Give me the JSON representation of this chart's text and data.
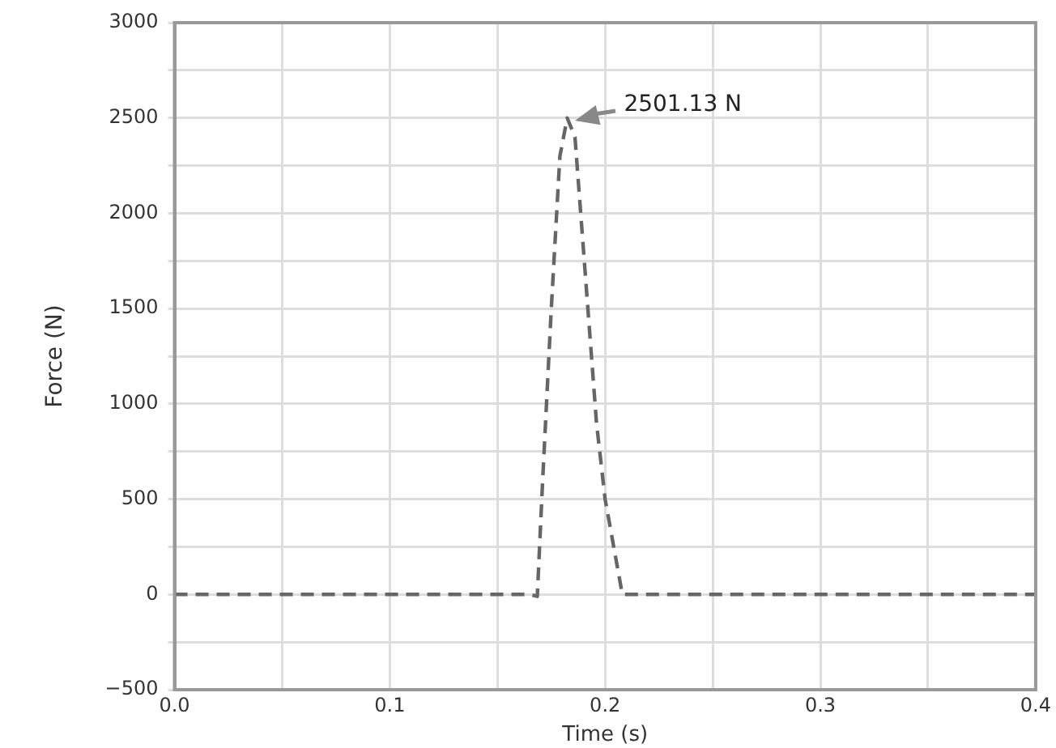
{
  "chart_data": {
    "type": "line",
    "xlabel": "Time (s)",
    "ylabel": "Force (N)",
    "x": [
      0,
      0.165,
      0.1685,
      0.171,
      0.175,
      0.179,
      0.1824,
      0.186,
      0.19,
      0.196,
      0.2,
      0.208,
      0.4
    ],
    "series": [
      {
        "color": "#666666",
        "values": [
          0,
          0,
          -10,
          600,
          1500,
          2300,
          2500,
          2400,
          1800,
          900,
          500,
          0,
          0
        ]
      }
    ],
    "xlim": [
      0,
      0.4
    ],
    "xticks": [
      {
        "value": 0,
        "label": "0.0"
      },
      {
        "value": 0.05,
        "label": null
      },
      0.1,
      {
        "value": 0.15,
        "label": null
      },
      0.2,
      {
        "value": 0.25,
        "label": null
      },
      0.3,
      {
        "value": 0.35,
        "label": null
      },
      0.4
    ],
    "ylim": [
      -500,
      3000
    ],
    "yticks": [
      {
        "value": -500,
        "label": "−500"
      },
      {
        "value": -250,
        "label": null
      },
      0,
      {
        "value": 250,
        "label": null
      },
      500,
      {
        "value": 750,
        "label": null
      },
      1000,
      {
        "value": 1250,
        "label": null
      },
      1500,
      {
        "value": 1750,
        "label": null
      },
      2000,
      {
        "value": 2250,
        "label": null
      },
      2500,
      {
        "value": 2750,
        "label": null
      },
      3000
    ],
    "grid": true,
    "legend": false,
    "marker": "none",
    "line_style": "dashed",
    "annotations": [
      {
        "text": "2501.13 N",
        "x": 0.1824,
        "y": 2500
      }
    ]
  }
}
